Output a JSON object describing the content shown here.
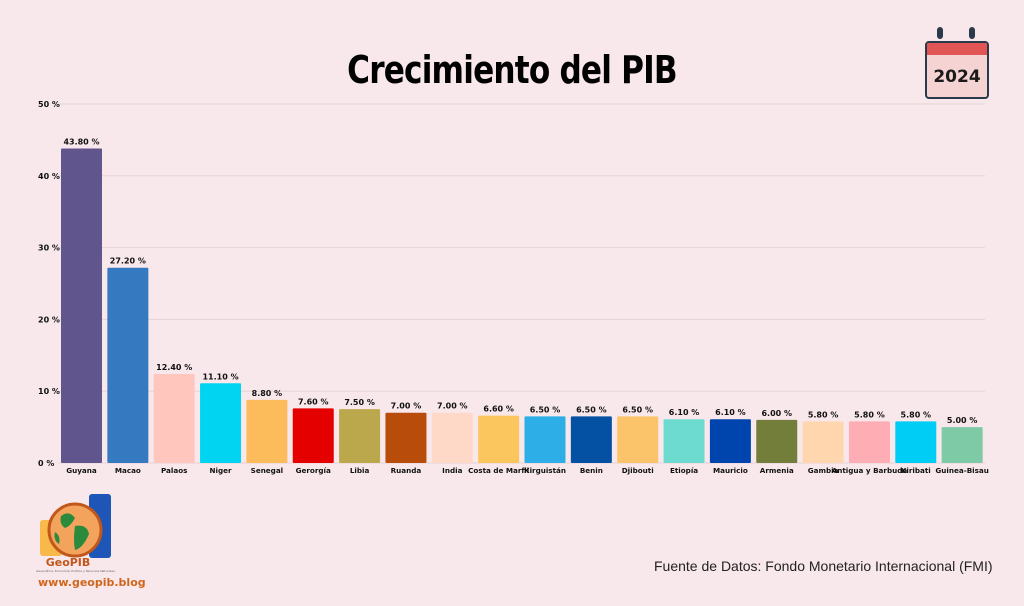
{
  "chart_data": {
    "type": "bar",
    "title": "Crecimiento del PIB",
    "categories": [
      "Guyana",
      "Macao",
      "Palaos",
      "Niger",
      "Senegal",
      "Gerorgía",
      "Libia",
      "Ruanda",
      "India",
      "Costa de Marfil",
      "Kirguistán",
      "Benin",
      "Djibouti",
      "Etiopía",
      "Mauricio",
      "Armenia",
      "Gambia",
      "Antigua y Barbuda",
      "Kiribati",
      "Guinea-Bisau"
    ],
    "values": [
      43.8,
      27.2,
      12.4,
      11.1,
      8.8,
      7.6,
      7.5,
      7.0,
      7.0,
      6.6,
      6.5,
      6.5,
      6.5,
      6.1,
      6.1,
      6.0,
      5.8,
      5.8,
      5.8,
      5.0
    ],
    "value_labels": [
      "43.80 %",
      "27.20 %",
      "12.40 %",
      "11.10 %",
      "8.80 %",
      "7.60 %",
      "7.50 %",
      "7.00 %",
      "7.00 %",
      "6.60 %",
      "6.50 %",
      "6.50 %",
      "6.50 %",
      "6.10 %",
      "6.10 %",
      "6.00 %",
      "5.80 %",
      "5.80 %",
      "5.80 %",
      "5.00 %"
    ],
    "colors": [
      "#60558d",
      "#3579c0",
      "#ffc6bd",
      "#00d4f0",
      "#fcbc5c",
      "#e50000",
      "#bca84c",
      "#b84c0a",
      "#ffd9c8",
      "#fcc65e",
      "#2daee7",
      "#0450a3",
      "#fcc46a",
      "#6edbd1",
      "#0045ad",
      "#727e3a",
      "#ffd6ae",
      "#ffadb5",
      "#00cdf6",
      "#7ecaa7"
    ],
    "ylim": [
      0,
      50
    ],
    "yticks": [
      "0 %",
      "10 %",
      "20 %",
      "30 %",
      "40 %",
      "50 %"
    ],
    "grid": true
  },
  "badge": {
    "year": "2024"
  },
  "source": "Fuente de Datos: Fondo Monetario Internacional (FMI)",
  "logo": {
    "name": "GeoPIB",
    "tagline": "Geopolítica, Economía, Política y Recursos Naturales",
    "url": "www.geopib.blog"
  }
}
